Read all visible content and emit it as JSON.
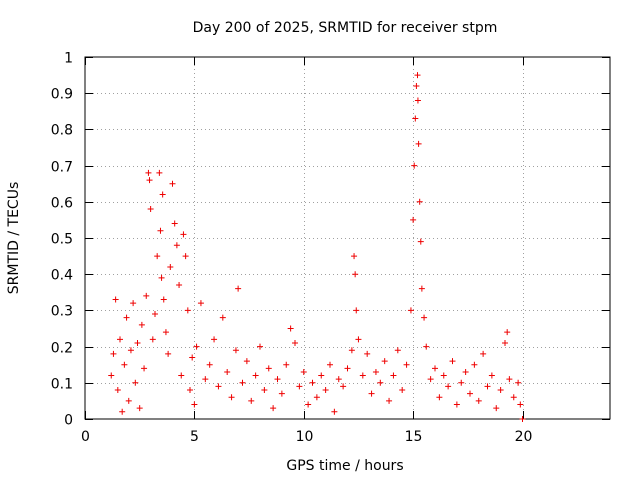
{
  "chart_data": {
    "type": "scatter",
    "title": "Day 200 of 2025, SRMTID for receiver stpm",
    "xlabel": "GPS time / hours",
    "ylabel": "SRMTID / TECUs",
    "xlim": [
      0,
      24
    ],
    "ylim": [
      0,
      1
    ],
    "x_ticks": [
      0,
      5,
      10,
      15,
      20
    ],
    "y_ticks": [
      0,
      0.1,
      0.2,
      0.3,
      0.4,
      0.5,
      0.6,
      0.7,
      0.8,
      0.9,
      1
    ],
    "y_tick_labels": [
      "0",
      "0.1",
      "0.2",
      "0.3",
      "0.4",
      "0.5",
      "0.6",
      "0.7",
      "0.8",
      "0.9",
      "1"
    ],
    "grid": true,
    "marker": "+",
    "series_color": "#ee0000",
    "series": [
      {
        "name": "SRMTID",
        "points": [
          [
            1.2,
            0.12
          ],
          [
            1.3,
            0.18
          ],
          [
            1.4,
            0.33
          ],
          [
            1.5,
            0.08
          ],
          [
            1.6,
            0.22
          ],
          [
            1.7,
            0.02
          ],
          [
            1.8,
            0.15
          ],
          [
            1.9,
            0.28
          ],
          [
            2.0,
            0.05
          ],
          [
            2.1,
            0.19
          ],
          [
            2.2,
            0.32
          ],
          [
            2.3,
            0.1
          ],
          [
            2.4,
            0.21
          ],
          [
            2.5,
            0.03
          ],
          [
            2.6,
            0.26
          ],
          [
            2.7,
            0.14
          ],
          [
            2.8,
            0.34
          ],
          [
            2.9,
            0.68
          ],
          [
            2.95,
            0.66
          ],
          [
            3.0,
            0.58
          ],
          [
            3.1,
            0.22
          ],
          [
            3.2,
            0.29
          ],
          [
            3.3,
            0.45
          ],
          [
            3.4,
            0.68
          ],
          [
            3.45,
            0.52
          ],
          [
            3.5,
            0.39
          ],
          [
            3.55,
            0.62
          ],
          [
            3.6,
            0.33
          ],
          [
            3.7,
            0.24
          ],
          [
            3.8,
            0.18
          ],
          [
            3.9,
            0.42
          ],
          [
            4.0,
            0.65
          ],
          [
            4.1,
            0.54
          ],
          [
            4.2,
            0.48
          ],
          [
            4.3,
            0.37
          ],
          [
            4.4,
            0.12
          ],
          [
            4.5,
            0.51
          ],
          [
            4.6,
            0.45
          ],
          [
            4.7,
            0.3
          ],
          [
            4.8,
            0.08
          ],
          [
            4.9,
            0.17
          ],
          [
            5.0,
            0.04
          ],
          [
            5.1,
            0.2
          ],
          [
            5.3,
            0.32
          ],
          [
            5.5,
            0.11
          ],
          [
            5.7,
            0.15
          ],
          [
            5.9,
            0.22
          ],
          [
            6.1,
            0.09
          ],
          [
            6.3,
            0.28
          ],
          [
            6.5,
            0.13
          ],
          [
            6.7,
            0.06
          ],
          [
            6.9,
            0.19
          ],
          [
            7.0,
            0.36
          ],
          [
            7.2,
            0.1
          ],
          [
            7.4,
            0.16
          ],
          [
            7.6,
            0.05
          ],
          [
            7.8,
            0.12
          ],
          [
            8.0,
            0.2
          ],
          [
            8.2,
            0.08
          ],
          [
            8.4,
            0.14
          ],
          [
            8.6,
            0.03
          ],
          [
            8.8,
            0.11
          ],
          [
            9.0,
            0.07
          ],
          [
            9.2,
            0.15
          ],
          [
            9.4,
            0.25
          ],
          [
            9.6,
            0.21
          ],
          [
            9.8,
            0.09
          ],
          [
            10.0,
            0.13
          ],
          [
            10.2,
            0.04
          ],
          [
            10.4,
            0.1
          ],
          [
            10.6,
            0.06
          ],
          [
            10.8,
            0.12
          ],
          [
            11.0,
            0.08
          ],
          [
            11.2,
            0.15
          ],
          [
            11.4,
            0.02
          ],
          [
            11.6,
            0.11
          ],
          [
            11.8,
            0.09
          ],
          [
            12.0,
            0.14
          ],
          [
            12.2,
            0.19
          ],
          [
            12.3,
            0.45
          ],
          [
            12.35,
            0.4
          ],
          [
            12.4,
            0.3
          ],
          [
            12.5,
            0.22
          ],
          [
            12.7,
            0.12
          ],
          [
            12.9,
            0.18
          ],
          [
            13.1,
            0.07
          ],
          [
            13.3,
            0.13
          ],
          [
            13.5,
            0.1
          ],
          [
            13.7,
            0.16
          ],
          [
            13.9,
            0.05
          ],
          [
            14.1,
            0.12
          ],
          [
            14.3,
            0.19
          ],
          [
            14.5,
            0.08
          ],
          [
            14.7,
            0.15
          ],
          [
            14.9,
            0.3
          ],
          [
            15.0,
            0.55
          ],
          [
            15.05,
            0.7
          ],
          [
            15.1,
            0.83
          ],
          [
            15.15,
            0.92
          ],
          [
            15.2,
            0.95
          ],
          [
            15.22,
            0.88
          ],
          [
            15.25,
            0.76
          ],
          [
            15.3,
            0.6
          ],
          [
            15.35,
            0.49
          ],
          [
            15.4,
            0.36
          ],
          [
            15.5,
            0.28
          ],
          [
            15.6,
            0.2
          ],
          [
            15.8,
            0.11
          ],
          [
            16.0,
            0.14
          ],
          [
            16.2,
            0.06
          ],
          [
            16.4,
            0.12
          ],
          [
            16.6,
            0.09
          ],
          [
            16.8,
            0.16
          ],
          [
            17.0,
            0.04
          ],
          [
            17.2,
            0.1
          ],
          [
            17.4,
            0.13
          ],
          [
            17.6,
            0.07
          ],
          [
            17.8,
            0.15
          ],
          [
            18.0,
            0.05
          ],
          [
            18.2,
            0.18
          ],
          [
            18.4,
            0.09
          ],
          [
            18.6,
            0.12
          ],
          [
            18.8,
            0.03
          ],
          [
            19.0,
            0.08
          ],
          [
            19.2,
            0.21
          ],
          [
            19.3,
            0.24
          ],
          [
            19.4,
            0.11
          ],
          [
            19.6,
            0.06
          ],
          [
            19.8,
            0.1
          ],
          [
            19.9,
            0.04
          ],
          [
            20.0,
            0.0
          ]
        ]
      }
    ]
  }
}
